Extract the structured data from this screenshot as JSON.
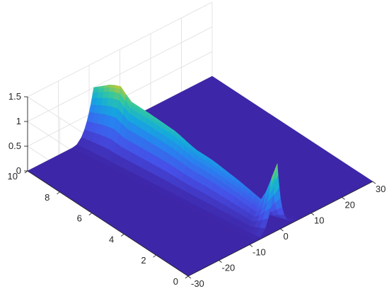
{
  "chart_data": {
    "type": "surface",
    "title": "",
    "xlabel": "",
    "ylabel": "",
    "zlabel": "",
    "colormap": "parula",
    "base_color": "#3e26a8",
    "grid": true,
    "x_axis": {
      "range": [
        -30,
        30
      ],
      "ticks": [
        -30,
        -20,
        -10,
        0,
        10,
        20,
        30
      ]
    },
    "y_axis": {
      "range": [
        0,
        10
      ],
      "ticks": [
        0,
        2,
        4,
        6,
        8,
        10
      ]
    },
    "z_axis": {
      "range": [
        0,
        1.5
      ],
      "ticks": [
        0,
        0.5,
        1,
        1.5
      ]
    },
    "wave": {
      "front_start_x": -1,
      "front_slope_x_per_y": 0.75,
      "peak_heights": [
        [
          0,
          1.35
        ],
        [
          0.8,
          0.45
        ],
        [
          2,
          0.6
        ],
        [
          3.5,
          0.75
        ],
        [
          4.5,
          0.8
        ],
        [
          5.5,
          0.95
        ],
        [
          7,
          1.05
        ],
        [
          8,
          1.1
        ],
        [
          8.5,
          1.3
        ],
        [
          9,
          1.25
        ],
        [
          10,
          1.0
        ]
      ]
    }
  }
}
